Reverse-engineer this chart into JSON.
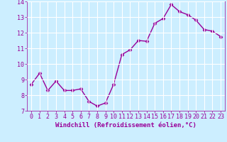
{
  "x": [
    0,
    1,
    2,
    3,
    4,
    5,
    6,
    7,
    8,
    9,
    10,
    11,
    12,
    13,
    14,
    15,
    16,
    17,
    18,
    19,
    20,
    21,
    22,
    23
  ],
  "y": [
    8.7,
    9.4,
    8.3,
    8.9,
    8.3,
    8.3,
    8.4,
    7.6,
    7.3,
    7.5,
    8.7,
    10.6,
    10.9,
    11.5,
    11.45,
    12.6,
    12.9,
    13.8,
    13.35,
    13.15,
    12.8,
    12.2,
    12.1,
    11.75
  ],
  "line_color": "#990099",
  "marker": "D",
  "marker_size": 2.5,
  "bg_color": "#cceeff",
  "grid_color": "#ffffff",
  "ylim": [
    7,
    14
  ],
  "xlim": [
    -0.5,
    23.5
  ],
  "yticks": [
    7,
    8,
    9,
    10,
    11,
    12,
    13,
    14
  ],
  "xticks": [
    0,
    1,
    2,
    3,
    4,
    5,
    6,
    7,
    8,
    9,
    10,
    11,
    12,
    13,
    14,
    15,
    16,
    17,
    18,
    19,
    20,
    21,
    22,
    23
  ],
  "xlabel": "Windchill (Refroidissement éolien,°C)",
  "xlabel_color": "#990099",
  "tick_color": "#990099",
  "tick_label_color": "#990099",
  "axis_label_fontsize": 6.5,
  "tick_fontsize": 6.0,
  "linewidth": 1.0
}
